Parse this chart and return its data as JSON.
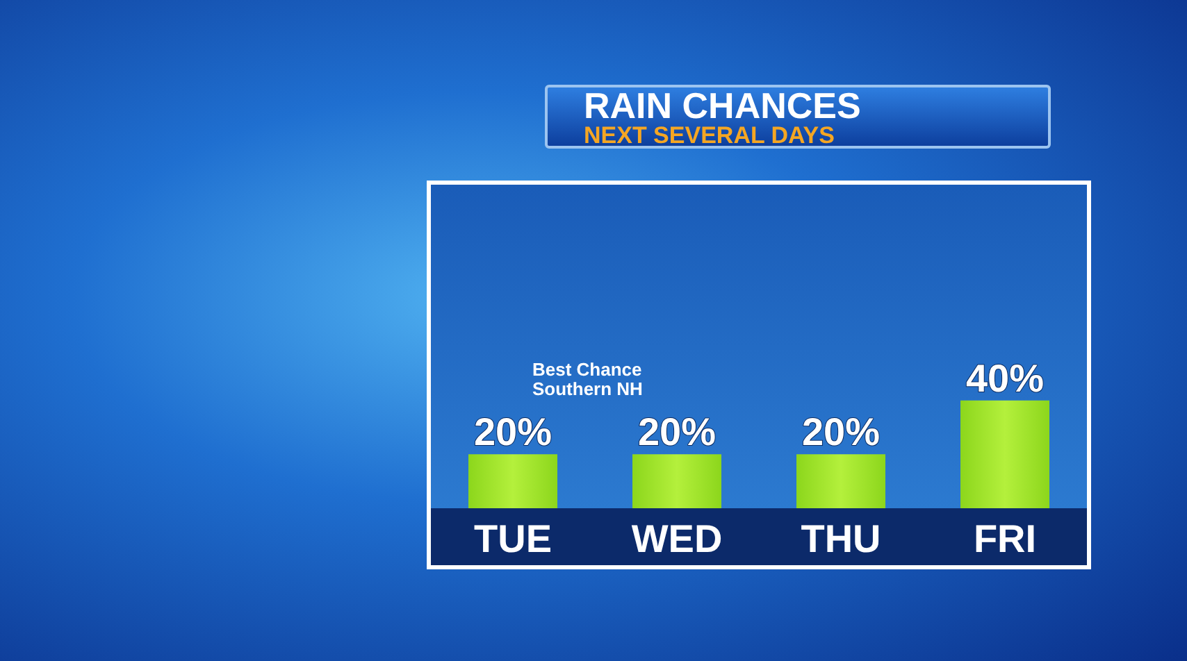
{
  "chart_data": {
    "type": "bar",
    "title": "RAIN CHANCES",
    "subtitle": "NEXT SEVERAL DAYS",
    "categories": [
      "TUE",
      "WED",
      "THU",
      "FRI"
    ],
    "values": [
      20,
      20,
      20,
      40
    ],
    "value_labels": [
      "20%",
      "20%",
      "20%",
      "40%"
    ],
    "color": "#8cd61c",
    "annotations": [
      "Best Chance\nSouthern NH"
    ]
  }
}
